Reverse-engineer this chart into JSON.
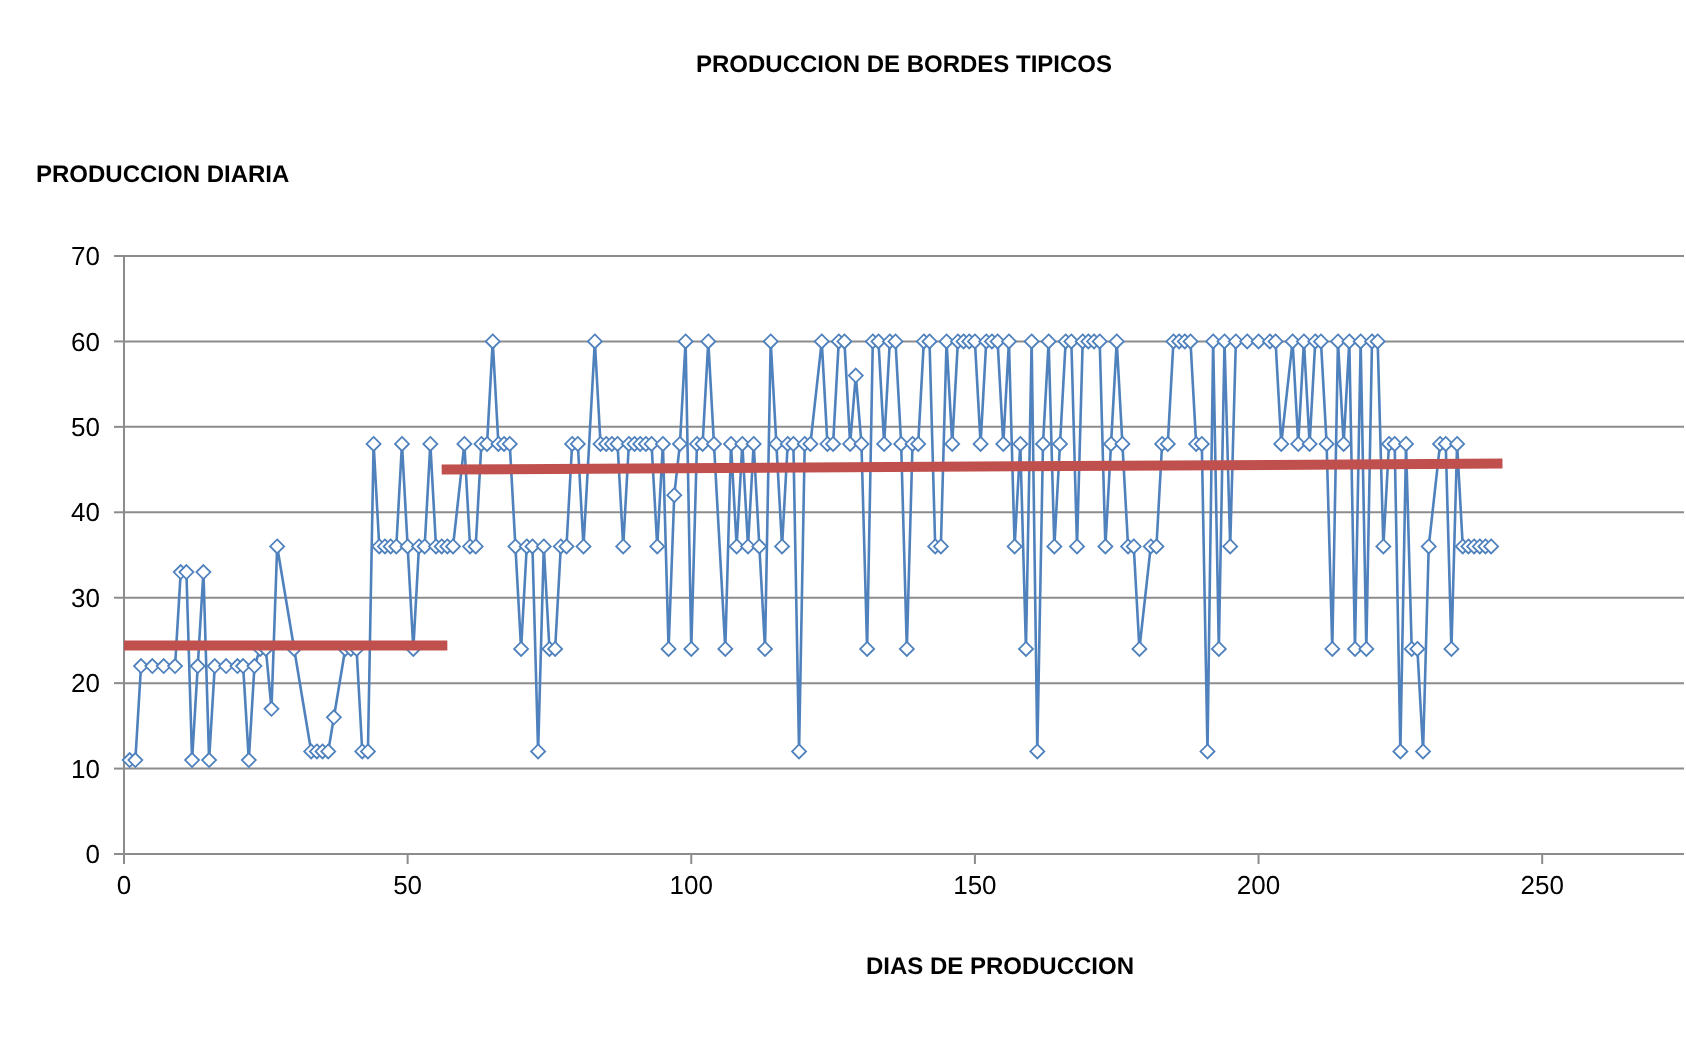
{
  "chart_data": {
    "type": "line",
    "title": "PRODUCCION DE BORDES TIPICOS",
    "xlabel": "DIAS DE PRODUCCION",
    "ylabel": "PRODUCCION DIARIA",
    "xlim": [
      0,
      275
    ],
    "xticks": [
      0,
      50,
      100,
      150,
      200,
      250
    ],
    "ylim": [
      0,
      70
    ],
    "yticks": [
      0,
      10,
      20,
      30,
      40,
      50,
      60,
      70
    ],
    "grid": "y",
    "series": [
      {
        "color": "#4f81bd",
        "marker": "diamond",
        "x": [
          1,
          2,
          3,
          5,
          7,
          9,
          10,
          11,
          12,
          13,
          14,
          15,
          16,
          18,
          20,
          21,
          22,
          23,
          24,
          25,
          26,
          27,
          30,
          33,
          34,
          35,
          36,
          37,
          39,
          40,
          41,
          42,
          43,
          44,
          45,
          46,
          47,
          48,
          49,
          50,
          51,
          52,
          53,
          54,
          55,
          56,
          57,
          58,
          60,
          61,
          62,
          63,
          64,
          65,
          66,
          67,
          68,
          69,
          70,
          71,
          72,
          73,
          74,
          75,
          76,
          77,
          78,
          79,
          80,
          81,
          83,
          84,
          85,
          86,
          87,
          88,
          89,
          90,
          91,
          92,
          93,
          94,
          95,
          96,
          97,
          98,
          99,
          100,
          101,
          102,
          103,
          104,
          106,
          107,
          108,
          109,
          110,
          111,
          112,
          113,
          114,
          115,
          116,
          117,
          118,
          119,
          120,
          121,
          123,
          124,
          125,
          126,
          127,
          128,
          129,
          130,
          131,
          132,
          133,
          134,
          135,
          136,
          137,
          138,
          139,
          140,
          141,
          142,
          143,
          144,
          145,
          146,
          147,
          148,
          149,
          150,
          151,
          152,
          153,
          154,
          155,
          156,
          157,
          158,
          159,
          160,
          161,
          162,
          163,
          164,
          165,
          166,
          167,
          168,
          169,
          170,
          171,
          172,
          173,
          174,
          175,
          176,
          177,
          178,
          179,
          181,
          182,
          183,
          184,
          185,
          186,
          187,
          188,
          189,
          190,
          191,
          192,
          193,
          194,
          195,
          196,
          198,
          200,
          202,
          203,
          204,
          206,
          207,
          208,
          209,
          210,
          211,
          212,
          213,
          214,
          215,
          216,
          217,
          218,
          219,
          220,
          221,
          222,
          223,
          224,
          225,
          226,
          227,
          228,
          229,
          230,
          232,
          233,
          234,
          235,
          236,
          237,
          238,
          239,
          240,
          241
        ],
        "values": [
          11,
          11,
          22,
          22,
          22,
          22,
          33,
          33,
          11,
          22,
          33,
          11,
          22,
          22,
          22,
          22,
          11,
          22,
          24,
          24,
          17,
          36,
          24,
          12,
          12,
          12,
          12,
          16,
          24,
          24,
          24,
          12,
          12,
          48,
          36,
          36,
          36,
          36,
          48,
          36,
          24,
          36,
          36,
          48,
          36,
          36,
          36,
          36,
          48,
          36,
          36,
          48,
          48,
          60,
          48,
          48,
          48,
          36,
          24,
          36,
          36,
          12,
          36,
          24,
          24,
          36,
          36,
          48,
          48,
          36,
          60,
          48,
          48,
          48,
          48,
          36,
          48,
          48,
          48,
          48,
          48,
          36,
          48,
          24,
          42,
          48,
          60,
          24,
          48,
          48,
          60,
          48,
          24,
          48,
          36,
          48,
          36,
          48,
          36,
          24,
          60,
          48,
          36,
          48,
          48,
          12,
          48,
          48,
          60,
          48,
          48,
          60,
          60,
          48,
          56,
          48,
          24,
          60,
          60,
          48,
          60,
          60,
          48,
          24,
          48,
          48,
          60,
          60,
          36,
          36,
          60,
          48,
          60,
          60,
          60,
          60,
          48,
          60,
          60,
          60,
          48,
          60,
          36,
          48,
          24,
          60,
          12,
          48,
          60,
          36,
          48,
          60,
          60,
          36,
          60,
          60,
          60,
          60,
          36,
          48,
          60,
          48,
          36,
          36,
          24,
          36,
          36,
          48,
          48,
          60,
          60,
          60,
          60,
          48,
          48,
          12,
          60,
          24,
          60,
          36,
          60,
          60,
          60,
          60,
          60,
          48,
          60,
          48,
          60,
          48,
          60,
          60,
          48,
          24,
          60,
          48,
          60,
          24,
          60,
          24,
          60,
          60,
          36,
          48,
          48,
          12,
          48,
          24,
          24,
          12,
          36,
          48,
          48,
          24,
          48,
          36,
          36,
          36,
          36,
          36,
          36
        ]
      },
      {
        "color": "#c0504d",
        "marker": "none",
        "x": [
          0,
          57
        ],
        "values": [
          24.4,
          24.4
        ]
      },
      {
        "color": "#c0504d",
        "marker": "none",
        "x": [
          56,
          243
        ],
        "values": [
          45,
          45.7
        ]
      }
    ]
  }
}
